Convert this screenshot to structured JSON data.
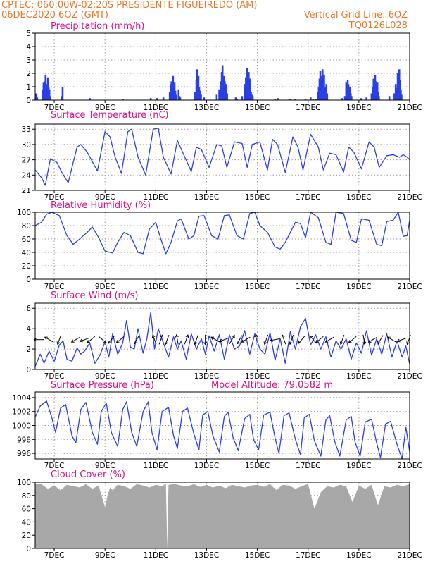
{
  "header": {
    "line1": "CPTEC:   060:00W-02:20S   PRESIDENTE FIGUEIREDO (AM)",
    "line2_left": "06DEC2020 6OZ (GMT)",
    "line2_right": "Vertical Grid Line: 6OZ",
    "line3_right": "TQ0126L028"
  },
  "model_altitude": "Model Altitude: 79.0582 m",
  "x_tick_labels": [
    "7DEC",
    "9DEC",
    "11DEC",
    "13DEC",
    "15DEC",
    "17DEC",
    "19DEC",
    "21DEC"
  ],
  "colors": {
    "header": "#e8782a",
    "panel_title": "#d6118a",
    "line": "#2b3fe6",
    "bar": "#2b3fe6",
    "cloud": "#a8a8a8",
    "grid": "#9a9a9a"
  },
  "chart_data": [
    {
      "type": "bar",
      "title": "Precipitation (mm/h)",
      "ylim": [
        0,
        5
      ],
      "yticks": [
        "0",
        "1",
        "2",
        "3",
        "4",
        "5"
      ],
      "x_day_range": [
        6.25,
        21
      ],
      "x": [
        6.3,
        6.33,
        6.55,
        6.58,
        6.6,
        6.63,
        6.66,
        6.69,
        6.72,
        6.75,
        6.78,
        6.81,
        6.84,
        7.3,
        7.33,
        8.4,
        9.7,
        10.8,
        11.05,
        11.3,
        11.55,
        11.6,
        11.62,
        11.65,
        11.68,
        11.71,
        11.74,
        11.77,
        11.8,
        11.9,
        11.93,
        11.96,
        12.55,
        12.6,
        12.62,
        12.65,
        12.68,
        12.71,
        12.75,
        12.78,
        12.9,
        13.4,
        13.5,
        13.55,
        13.6,
        13.63,
        13.66,
        13.69,
        13.72,
        13.75,
        13.78,
        13.81,
        14.15,
        14.2,
        14.4,
        14.5,
        14.55,
        14.6,
        14.63,
        14.66,
        14.69,
        14.72,
        14.75,
        14.78,
        14.82,
        15.7,
        15.8,
        16.3,
        16.5,
        16.9,
        17.1,
        17.2,
        17.3,
        17.4,
        17.42,
        17.45,
        17.48,
        17.51,
        17.54,
        17.57,
        17.6,
        17.63,
        17.66,
        17.69,
        17.72,
        17.75,
        18.35,
        18.45,
        18.5,
        18.53,
        18.56,
        18.59,
        18.62,
        18.65,
        18.68,
        18.71,
        19.1,
        19.3,
        19.5,
        19.55,
        19.58,
        19.61,
        19.64,
        19.67,
        19.7,
        19.73,
        19.76,
        19.79,
        20.2,
        20.4,
        20.45,
        20.5,
        20.53,
        20.56,
        20.59,
        20.62,
        20.65,
        20.68
      ],
      "values": [
        0.5,
        0.2,
        0.8,
        1.3,
        0.7,
        1.4,
        1.9,
        0.9,
        1.2,
        1.7,
        1.0,
        0.8,
        0.3,
        0.3,
        1.0,
        0.15,
        0.1,
        0.15,
        0.15,
        0.2,
        0.6,
        1.2,
        1.4,
        1.0,
        1.8,
        0.9,
        1.3,
        0.7,
        0.4,
        0.8,
        0.3,
        0.2,
        0.6,
        1.5,
        2.3,
        1.2,
        1.8,
        1.0,
        0.7,
        0.4,
        0.2,
        0.4,
        0.8,
        1.4,
        2.1,
        2.6,
        1.3,
        1.8,
        1.4,
        0.9,
        1.2,
        0.5,
        0.2,
        0.1,
        0.3,
        1.2,
        1.7,
        2.4,
        1.4,
        2.1,
        1.0,
        1.6,
        0.6,
        0.4,
        0.3,
        0.1,
        0.15,
        0.1,
        0.1,
        0.1,
        0.2,
        0.1,
        0.1,
        0.6,
        1.0,
        1.6,
        2.2,
        1.3,
        1.8,
        2.3,
        1.2,
        1.9,
        1.0,
        0.7,
        1.2,
        0.5,
        0.15,
        0.3,
        1.3,
        0.9,
        1.5,
        1.2,
        0.7,
        1.0,
        0.5,
        0.3,
        0.15,
        0.2,
        0.5,
        1.0,
        1.6,
        1.2,
        1.9,
        1.4,
        0.8,
        1.3,
        0.6,
        0.3,
        0.3,
        0.5,
        1.2,
        0.9,
        2.0,
        1.3,
        2.3,
        1.5,
        0.8,
        0.4
      ]
    },
    {
      "type": "line",
      "title": "Surface Temperature (nC)",
      "ylim": [
        21,
        34
      ],
      "yticks": [
        "21",
        "24",
        "27",
        "30",
        "33"
      ],
      "x": [
        6.25,
        6.5,
        6.65,
        6.85,
        7.1,
        7.3,
        7.55,
        7.9,
        8.05,
        8.3,
        8.7,
        9.0,
        9.2,
        9.4,
        9.65,
        9.9,
        10.05,
        10.3,
        10.6,
        10.9,
        11.1,
        11.3,
        11.6,
        11.85,
        12.1,
        12.4,
        12.6,
        12.8,
        13.1,
        13.4,
        13.6,
        13.8,
        14.1,
        14.4,
        14.6,
        14.8,
        15.1,
        15.4,
        15.6,
        15.8,
        16.1,
        16.4,
        16.6,
        16.8,
        17.1,
        17.4,
        17.6,
        17.85,
        18.1,
        18.4,
        18.6,
        18.8,
        19.1,
        19.4,
        19.6,
        19.8,
        20.1,
        20.35,
        20.6,
        20.75,
        20.9,
        21.0
      ],
      "values": [
        25.0,
        23.5,
        22.0,
        27.2,
        26.5,
        24.5,
        22.5,
        29.5,
        30.0,
        28.5,
        24.8,
        32.5,
        31.5,
        27.5,
        24.3,
        32.5,
        33.0,
        27.5,
        24.0,
        33.0,
        33.2,
        27.5,
        24.2,
        30.8,
        28.0,
        24.7,
        29.5,
        29.0,
        25.5,
        30.0,
        29.7,
        25.5,
        30.5,
        30.2,
        25.5,
        30.0,
        30.5,
        25.0,
        31.0,
        30.0,
        24.5,
        31.5,
        29.5,
        25.0,
        32.0,
        29.5,
        25.0,
        28.3,
        28.0,
        24.6,
        29.5,
        28.5,
        25.2,
        30.5,
        29.5,
        25.5,
        27.8,
        28.0,
        27.5,
        28.0,
        27.5,
        27.0
      ]
    },
    {
      "type": "line",
      "title": "Relative Humidity (%)",
      "ylim": [
        0,
        100
      ],
      "yticks": [
        "0",
        "20",
        "40",
        "60",
        "80",
        "100"
      ],
      "x": [
        6.25,
        6.5,
        6.7,
        6.9,
        7.2,
        7.5,
        7.75,
        8.0,
        8.3,
        8.5,
        8.75,
        9.0,
        9.3,
        9.5,
        9.75,
        10.0,
        10.3,
        10.5,
        10.75,
        11.0,
        11.2,
        11.4,
        11.6,
        11.85,
        12.0,
        12.3,
        12.5,
        12.7,
        12.9,
        13.2,
        13.45,
        13.7,
        13.9,
        14.2,
        14.45,
        14.7,
        14.9,
        15.1,
        15.4,
        15.7,
        15.9,
        16.1,
        16.5,
        16.7,
        16.9,
        17.1,
        17.4,
        17.7,
        17.9,
        18.1,
        18.4,
        18.7,
        18.9,
        19.1,
        19.4,
        19.7,
        19.9,
        20.1,
        20.35,
        20.55,
        20.75,
        20.9,
        21.0
      ],
      "values": [
        80,
        85,
        97,
        100,
        95,
        65,
        52,
        60,
        70,
        78,
        62,
        42,
        39,
        55,
        70,
        65,
        40,
        38,
        75,
        85,
        60,
        38,
        55,
        87,
        90,
        60,
        65,
        94,
        95,
        65,
        60,
        95,
        96,
        65,
        60,
        98,
        100,
        80,
        70,
        48,
        45,
        55,
        85,
        83,
        62,
        100,
        92,
        55,
        52,
        100,
        98,
        58,
        55,
        90,
        88,
        52,
        50,
        86,
        88,
        100,
        64,
        65,
        88
      ]
    },
    {
      "type": "line",
      "title": "Surface Wind (m/s)",
      "ylim": [
        0,
        6.5
      ],
      "yticks": [
        "0",
        "2",
        "4",
        "6"
      ],
      "x": [
        6.25,
        6.45,
        6.6,
        6.8,
        7.0,
        7.2,
        7.35,
        7.5,
        7.7,
        7.9,
        8.05,
        8.2,
        8.4,
        8.6,
        8.8,
        9.0,
        9.15,
        9.3,
        9.5,
        9.7,
        9.85,
        10.0,
        10.15,
        10.3,
        10.5,
        10.65,
        10.8,
        10.95,
        11.1,
        11.3,
        11.5,
        11.7,
        11.85,
        12.0,
        12.2,
        12.4,
        12.6,
        12.8,
        12.95,
        13.1,
        13.3,
        13.5,
        13.7,
        13.9,
        14.1,
        14.3,
        14.5,
        14.7,
        14.9,
        15.1,
        15.3,
        15.5,
        15.7,
        15.9,
        16.1,
        16.3,
        16.5,
        16.7,
        16.9,
        17.1,
        17.3,
        17.5,
        17.7,
        17.9,
        18.1,
        18.3,
        18.5,
        18.7,
        18.9,
        19.1,
        19.3,
        19.5,
        19.7,
        19.9,
        20.1,
        20.3,
        20.5,
        20.7,
        20.85,
        21.0
      ],
      "values": [
        0.3,
        1.5,
        0.6,
        1.8,
        0.8,
        2.4,
        2.8,
        1.0,
        0.8,
        2.1,
        1.5,
        1.8,
        2.6,
        0.6,
        1.4,
        2.7,
        1.2,
        3.5,
        1.5,
        2.6,
        4.8,
        2.2,
        2.0,
        4.0,
        1.6,
        3.0,
        5.6,
        2.0,
        4.0,
        2.6,
        1.2,
        3.2,
        2.0,
        2.8,
        1.0,
        3.5,
        2.0,
        3.0,
        1.5,
        3.3,
        1.8,
        3.4,
        1.0,
        3.4,
        2.0,
        2.3,
        3.8,
        1.5,
        3.5,
        2.0,
        1.5,
        3.6,
        0.9,
        3.0,
        0.6,
        3.7,
        2.0,
        4.2,
        5.0,
        2.4,
        3.4,
        2.0,
        3.2,
        1.2,
        2.8,
        2.0,
        3.0,
        1.0,
        2.6,
        1.6,
        3.8,
        1.4,
        3.0,
        1.5,
        3.5,
        1.2,
        2.8,
        1.2,
        2.3,
        0.5
      ],
      "arrows": [
        {
          "day": 6.4,
          "dir_deg": 270
        },
        {
          "day": 6.8,
          "dir_deg": 300
        },
        {
          "day": 7.2,
          "dir_deg": 200
        },
        {
          "day": 7.85,
          "dir_deg": 240
        },
        {
          "day": 8.2,
          "dir_deg": 250
        },
        {
          "day": 8.45,
          "dir_deg": 230
        },
        {
          "day": 8.9,
          "dir_deg": 130
        },
        {
          "day": 9.25,
          "dir_deg": 220
        },
        {
          "day": 9.6,
          "dir_deg": 230
        },
        {
          "day": 10.25,
          "dir_deg": 210
        },
        {
          "day": 10.95,
          "dir_deg": 340
        },
        {
          "day": 11.2,
          "dir_deg": 20
        },
        {
          "day": 11.45,
          "dir_deg": 200
        },
        {
          "day": 11.85,
          "dir_deg": 350
        },
        {
          "day": 12.2,
          "dir_deg": 20
        },
        {
          "day": 12.6,
          "dir_deg": 200
        },
        {
          "day": 12.95,
          "dir_deg": 180
        },
        {
          "day": 13.35,
          "dir_deg": 300
        },
        {
          "day": 13.7,
          "dir_deg": 250
        },
        {
          "day": 14.0,
          "dir_deg": 30
        },
        {
          "day": 14.3,
          "dir_deg": 210
        },
        {
          "day": 14.55,
          "dir_deg": 240
        },
        {
          "day": 14.95,
          "dir_deg": 0
        },
        {
          "day": 15.35,
          "dir_deg": 200
        },
        {
          "day": 15.7,
          "dir_deg": 260
        },
        {
          "day": 16.05,
          "dir_deg": 340
        },
        {
          "day": 16.35,
          "dir_deg": 200
        },
        {
          "day": 16.75,
          "dir_deg": 220
        },
        {
          "day": 17.2,
          "dir_deg": 320
        },
        {
          "day": 17.45,
          "dir_deg": 230
        },
        {
          "day": 17.85,
          "dir_deg": 240
        },
        {
          "day": 18.35,
          "dir_deg": 200
        },
        {
          "day": 18.75,
          "dir_deg": 230
        },
        {
          "day": 19.2,
          "dir_deg": 170
        },
        {
          "day": 19.55,
          "dir_deg": 240
        },
        {
          "day": 19.85,
          "dir_deg": 210
        },
        {
          "day": 20.3,
          "dir_deg": 300
        },
        {
          "day": 20.7,
          "dir_deg": 250
        },
        {
          "day": 20.97,
          "dir_deg": 200
        }
      ]
    },
    {
      "type": "line",
      "title": "Surface Pressure (hPa)",
      "ylim": [
        995.2,
        1004.8
      ],
      "yticks": [
        "996",
        "998",
        "1000",
        "1002",
        "1004"
      ],
      "x": [
        6.25,
        6.45,
        6.7,
        6.9,
        7.05,
        7.25,
        7.45,
        7.7,
        7.85,
        8.05,
        8.25,
        8.5,
        8.7,
        8.85,
        9.05,
        9.25,
        9.5,
        9.7,
        9.85,
        10.05,
        10.25,
        10.5,
        10.7,
        10.85,
        11.05,
        11.25,
        11.5,
        11.7,
        11.85,
        12.05,
        12.25,
        12.5,
        12.7,
        12.85,
        13.05,
        13.25,
        13.5,
        13.7,
        13.85,
        14.05,
        14.25,
        14.5,
        14.7,
        14.85,
        15.05,
        15.25,
        15.5,
        15.7,
        15.85,
        16.05,
        16.25,
        16.5,
        16.7,
        16.85,
        17.05,
        17.25,
        17.5,
        17.7,
        17.85,
        18.05,
        18.25,
        18.5,
        18.7,
        18.85,
        19.05,
        19.25,
        19.5,
        19.7,
        19.85,
        20.05,
        20.25,
        20.5,
        20.7,
        20.85,
        21.0
      ],
      "values": [
        1001.2,
        1002.8,
        1003.5,
        1001.2,
        999.0,
        1002.5,
        1003.0,
        998.5,
        997.5,
        1002.3,
        1003.3,
        999.0,
        997.3,
        1002.0,
        1003.2,
        999.0,
        997.0,
        1002.3,
        1003.4,
        999.0,
        997.0,
        1002.0,
        1003.4,
        999.0,
        996.5,
        1002.0,
        1002.6,
        998.5,
        996.7,
        1002.0,
        1002.5,
        998.8,
        996.5,
        1001.5,
        1002.0,
        998.5,
        996.2,
        1001.3,
        1001.9,
        998.2,
        996.4,
        1001.0,
        1001.6,
        998.0,
        996.5,
        1001.5,
        1001.9,
        998.2,
        996.0,
        1001.4,
        1001.8,
        998.0,
        995.8,
        1001.1,
        1001.6,
        997.8,
        995.6,
        1000.8,
        1001.4,
        997.7,
        995.6,
        1000.8,
        1001.3,
        997.6,
        995.6,
        1000.5,
        1000.9,
        997.5,
        995.4,
        1000.2,
        1000.6,
        997.3,
        995.2,
        999.8,
        996.2
      ]
    },
    {
      "type": "area",
      "title": "Cloud Cover (%)",
      "ylim": [
        0,
        100
      ],
      "yticks": [
        "0",
        "20",
        "40",
        "60",
        "80",
        "100"
      ],
      "x": [
        6.25,
        6.5,
        6.75,
        7.0,
        7.25,
        7.5,
        7.75,
        8.0,
        8.25,
        8.5,
        8.75,
        9.0,
        9.1,
        9.2,
        9.3,
        9.5,
        9.75,
        10.0,
        10.25,
        10.5,
        10.75,
        11.0,
        11.25,
        11.4,
        11.45,
        11.5,
        11.75,
        12.0,
        12.25,
        12.5,
        12.75,
        13.0,
        13.25,
        13.5,
        13.75,
        14.0,
        14.25,
        14.5,
        14.75,
        15.0,
        15.25,
        15.5,
        15.75,
        16.0,
        16.25,
        16.5,
        16.75,
        17.0,
        17.25,
        17.5,
        17.75,
        18.0,
        18.25,
        18.5,
        18.75,
        19.0,
        19.25,
        19.5,
        19.75,
        20.0,
        20.25,
        20.5,
        20.75,
        21.0
      ],
      "values": [
        98,
        97,
        90,
        95,
        88,
        96,
        94,
        92,
        97,
        90,
        95,
        62,
        80,
        92,
        88,
        96,
        94,
        90,
        97,
        95,
        92,
        96,
        94,
        98,
        0,
        96,
        97,
        95,
        94,
        97,
        93,
        96,
        92,
        95,
        91,
        96,
        94,
        92,
        95,
        96,
        93,
        97,
        88,
        96,
        95,
        90,
        94,
        97,
        60,
        85,
        94,
        92,
        96,
        94,
        70,
        95,
        90,
        96,
        65,
        94,
        92,
        96,
        94,
        97
      ]
    }
  ]
}
